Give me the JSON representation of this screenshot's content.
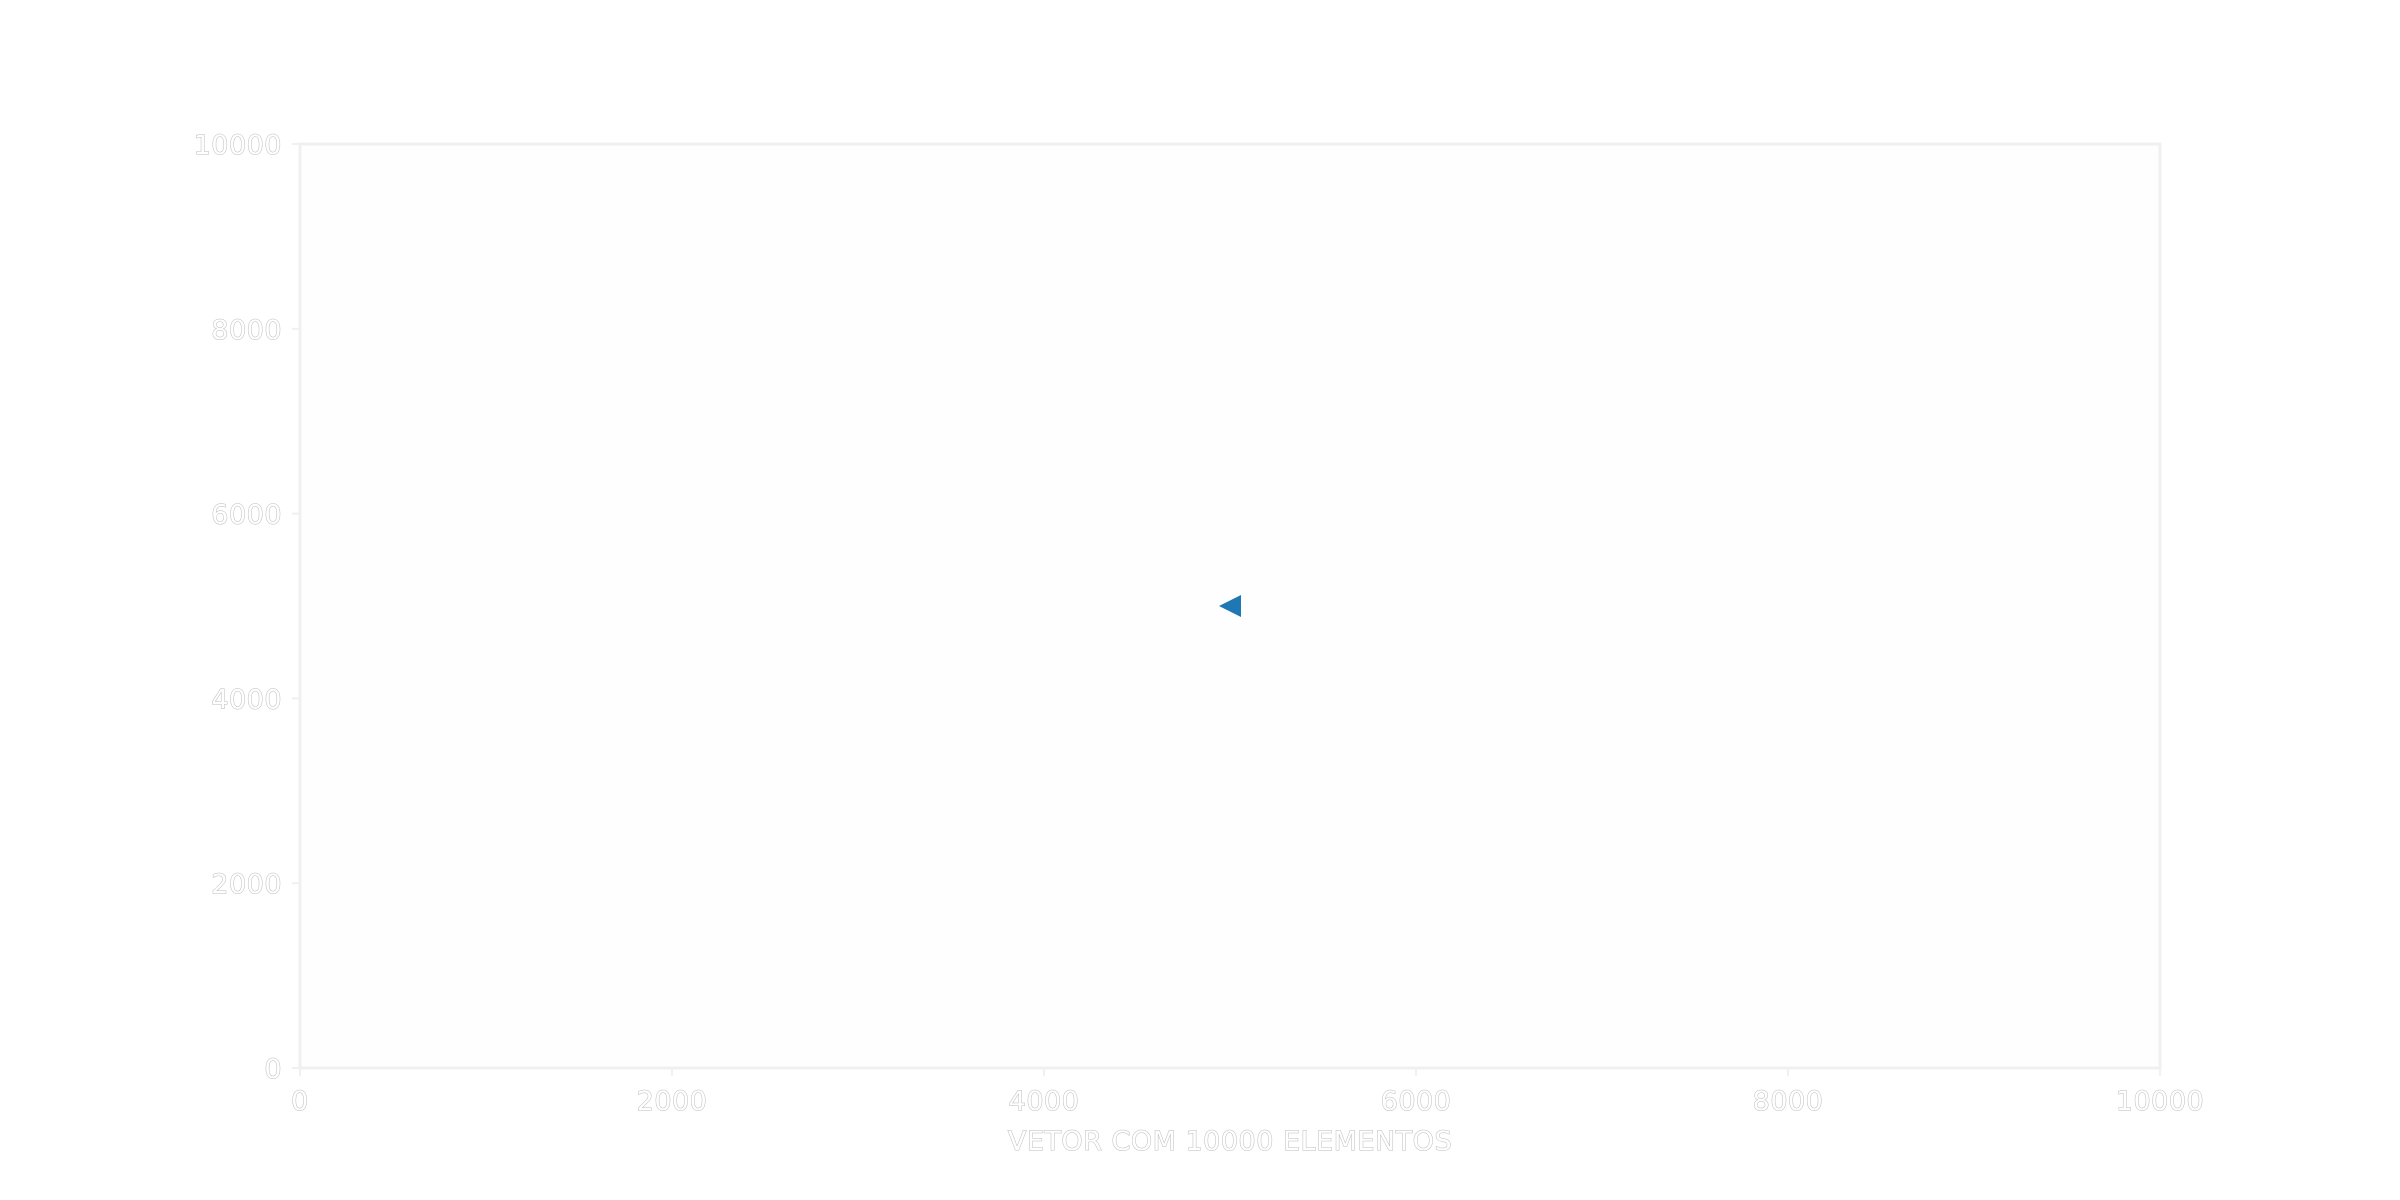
{
  "chart_data": {
    "type": "scatter",
    "title": "",
    "xlabel": "VETOR COM 10000 ELEMENTOS",
    "ylabel": "",
    "xlim": [
      0,
      10000
    ],
    "ylim": [
      0,
      10000
    ],
    "xticks": [
      0,
      2000,
      4000,
      6000,
      8000,
      10000
    ],
    "yticks": [
      0,
      2000,
      4000,
      6000,
      8000,
      10000
    ],
    "grid": false,
    "series": [
      {
        "name": "",
        "marker": "triangle-left",
        "color": "#1f77b4",
        "points": [
          {
            "x": 5000,
            "y": 5000
          }
        ]
      }
    ]
  },
  "colors": {
    "axes_frame": "#f0f0f0",
    "tick_text": "#b9b9b9",
    "plot_background": "#fefefe"
  }
}
